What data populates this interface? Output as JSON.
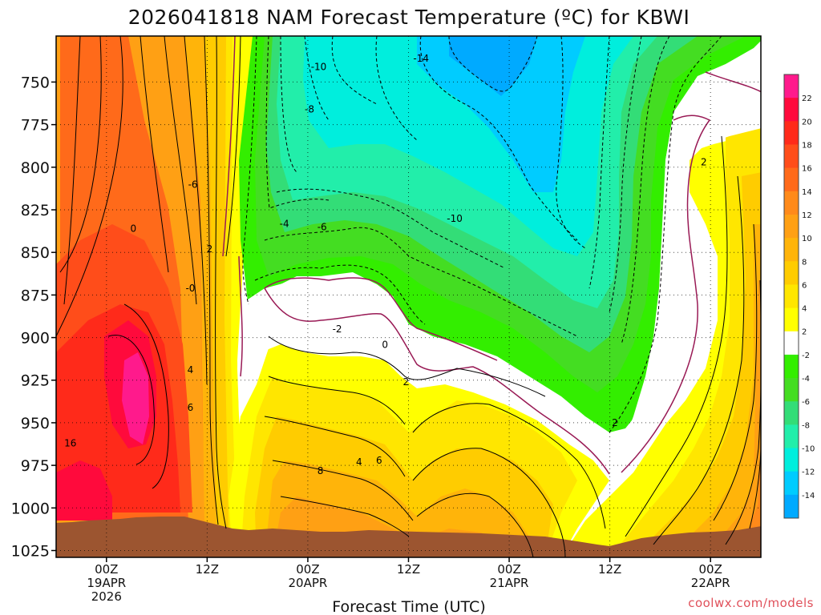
{
  "chart_data": {
    "type": "heatmap",
    "title": "2026041818 NAM Forecast Temperature (ºC) for KBWI",
    "xlabel": "Forecast Time (UTC)",
    "ylabel": "",
    "credit": "coolwx.com/models",
    "y_ticks": [
      "750",
      "775",
      "800",
      "825",
      "850",
      "875",
      "900",
      "925",
      "950",
      "975",
      "1000",
      "1025"
    ],
    "y_values": [
      750,
      775,
      800,
      825,
      850,
      875,
      900,
      925,
      950,
      975,
      1000,
      1025
    ],
    "ylim": [
      723,
      1029
    ],
    "x_ticks": [
      {
        "line1": "00Z",
        "line2": "19APR",
        "line3": "2026"
      },
      {
        "line1": "12Z",
        "line2": "",
        "line3": ""
      },
      {
        "line1": "00Z",
        "line2": "20APR",
        "line3": ""
      },
      {
        "line1": "12Z",
        "line2": "",
        "line3": ""
      },
      {
        "line1": "00Z",
        "line2": "21APR",
        "line3": ""
      },
      {
        "line1": "12Z",
        "line2": "",
        "line3": ""
      },
      {
        "line1": "00Z",
        "line2": "22APR",
        "line3": ""
      }
    ],
    "x_hours": [
      0,
      12,
      24,
      36,
      48,
      60,
      72
    ],
    "xlim": [
      -6,
      78
    ],
    "colorbar": {
      "labels": [
        "22",
        "20",
        "18",
        "16",
        "14",
        "12",
        "10",
        "8",
        "6",
        "4",
        "2",
        "-2",
        "-4",
        "-6",
        "-8",
        "-10",
        "-12",
        "-14"
      ],
      "values": [
        22,
        20,
        18,
        16,
        14,
        12,
        10,
        8,
        6,
        4,
        2,
        -2,
        -4,
        -6,
        -8,
        -10,
        -12,
        -14
      ],
      "colors": [
        "#ff1a8c",
        "#ff0a3c",
        "#ff2a1a",
        "#ff4d1a",
        "#ff6a1a",
        "#ff8a1a",
        "#ffa014",
        "#ffb40a",
        "#ffcc00",
        "#ffe600",
        "#ffff00",
        "#ffffff",
        "#33ee00",
        "#44dd22",
        "#33dd77",
        "#22eeaa",
        "#00eedd",
        "#00ccff",
        "#00aaff"
      ]
    },
    "contour_labels": [
      {
        "text": "-14",
        "hour": 37.5,
        "p": 738
      },
      {
        "text": "-10",
        "hour": 25.3,
        "p": 743
      },
      {
        "text": "-8",
        "hour": 24.2,
        "p": 768
      },
      {
        "text": "-6",
        "hour": 10.3,
        "p": 812
      },
      {
        "text": "-4",
        "hour": 21.2,
        "p": 835
      },
      {
        "text": "-6",
        "hour": 25.7,
        "p": 837
      },
      {
        "text": "-10",
        "hour": 41.5,
        "p": 832
      },
      {
        "text": "2",
        "hour": 12.3,
        "p": 850
      },
      {
        "text": "0",
        "hour": 3.2,
        "p": 838
      },
      {
        "text": "-0",
        "hour": 10.0,
        "p": 873
      },
      {
        "text": "-2",
        "hour": 27.5,
        "p": 897
      },
      {
        "text": "0",
        "hour": 33.2,
        "p": 906
      },
      {
        "text": "2",
        "hour": 35.7,
        "p": 928
      },
      {
        "text": "2",
        "hour": 60.6,
        "p": 952
      },
      {
        "text": "2",
        "hour": 71.2,
        "p": 799
      },
      {
        "text": "4",
        "hour": 10.0,
        "p": 921
      },
      {
        "text": "6",
        "hour": 10.0,
        "p": 943
      },
      {
        "text": "8",
        "hour": 25.5,
        "p": 980
      },
      {
        "text": "4",
        "hour": 30.1,
        "p": 975
      },
      {
        "text": "6",
        "hour": 32.5,
        "p": 974
      },
      {
        "text": "16",
        "hour": -4.3,
        "p": 964
      }
    ]
  }
}
